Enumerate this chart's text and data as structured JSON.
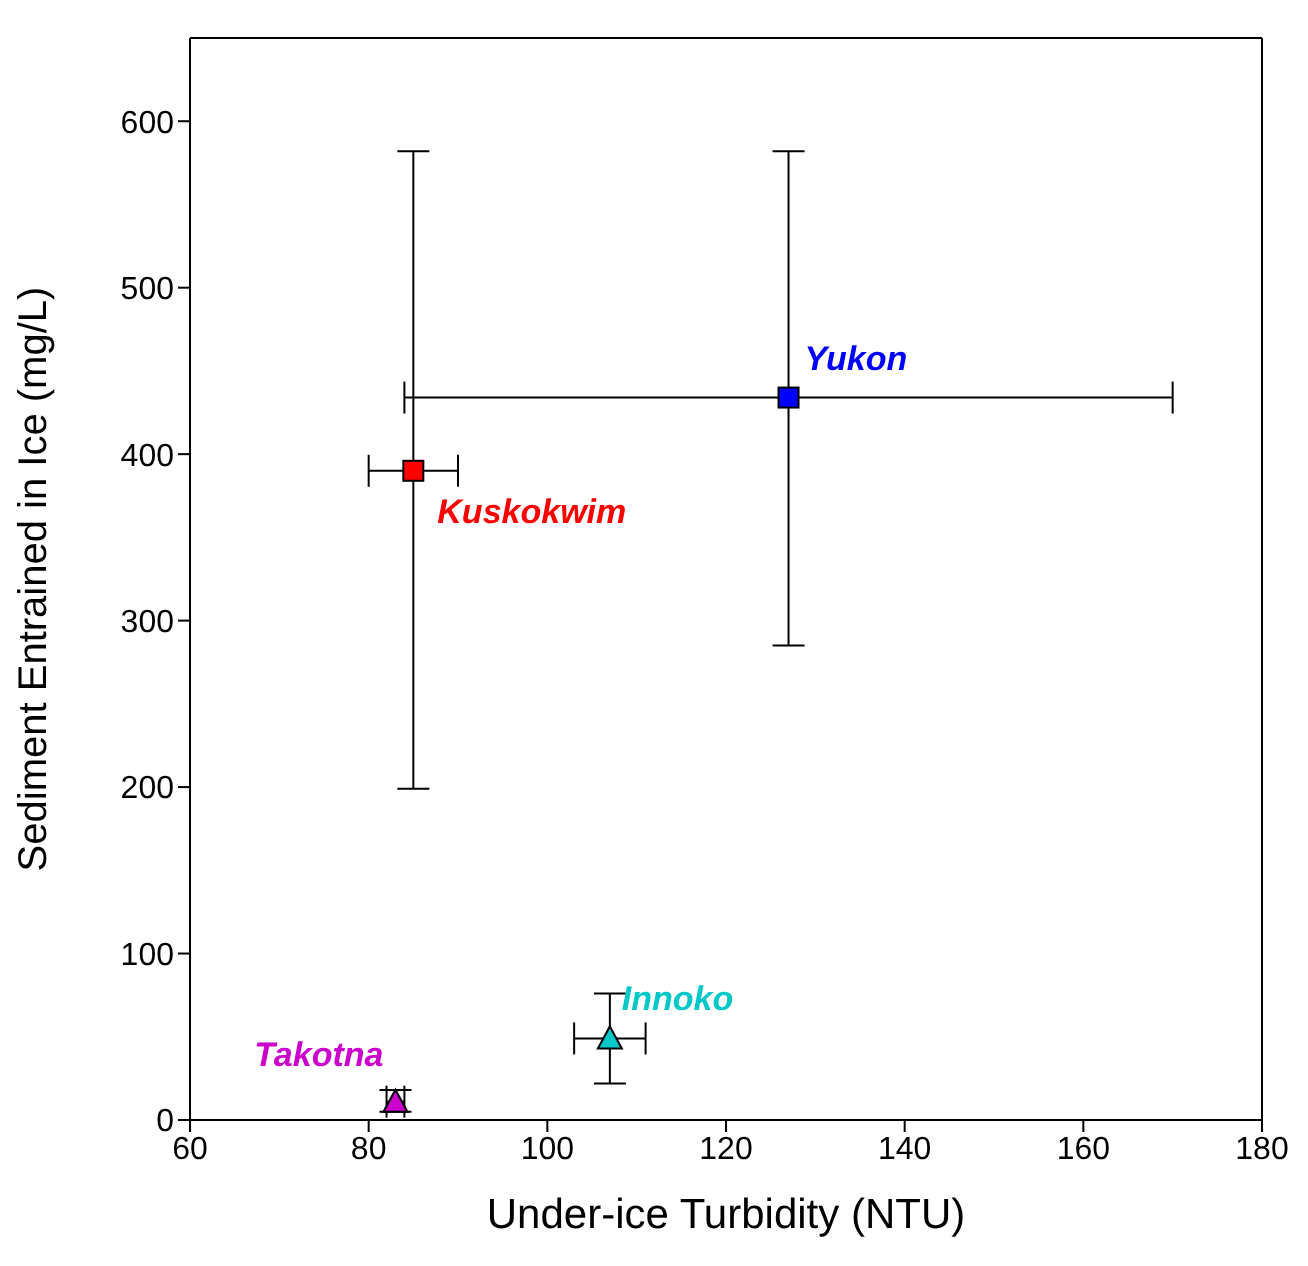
{
  "chart_data": {
    "type": "scatter",
    "xlabel": "Under-ice Turbidity (NTU)",
    "ylabel": "Sediment Entrained in Ice (mg/L)",
    "xlim": [
      60,
      180
    ],
    "xticks": [
      60,
      80,
      100,
      120,
      140,
      160,
      180
    ],
    "ylim": [
      0,
      650
    ],
    "yticks": [
      0,
      100,
      200,
      300,
      400,
      500,
      600
    ],
    "grid": false,
    "legend": false,
    "series": [
      {
        "name": "Yukon",
        "color": "#0000ff",
        "marker": "square",
        "x": [
          127
        ],
        "values": [
          434
        ],
        "errors": [
          [
            285,
            582
          ]
        ],
        "xerrors": [
          [
            84,
            170
          ]
        ]
      },
      {
        "name": "Kuskokwim",
        "color": "#ff0000",
        "marker": "square",
        "x": [
          85
        ],
        "values": [
          390
        ],
        "errors": [
          [
            199,
            582
          ]
        ],
        "xerrors": [
          [
            80,
            90
          ]
        ]
      },
      {
        "name": "Innoko",
        "color": "#00c8c8",
        "marker": "triangle",
        "x": [
          107
        ],
        "values": [
          49
        ],
        "errors": [
          [
            22,
            76
          ]
        ],
        "xerrors": [
          [
            103,
            111
          ]
        ]
      },
      {
        "name": "Takotna",
        "color": "#cc00cc",
        "marker": "triangle",
        "x": [
          83
        ],
        "values": [
          11
        ],
        "errors": [
          [
            5,
            18
          ]
        ],
        "xerrors": [
          [
            82,
            84
          ]
        ]
      }
    ]
  }
}
